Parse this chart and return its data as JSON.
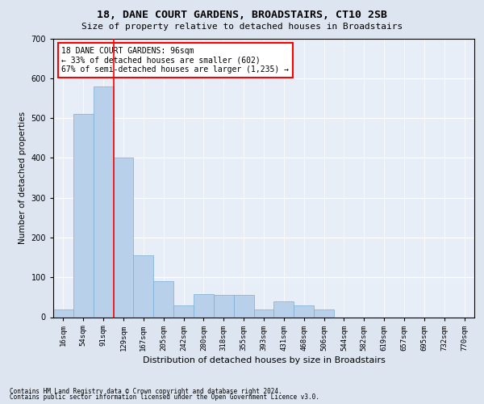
{
  "title": "18, DANE COURT GARDENS, BROADSTAIRS, CT10 2SB",
  "subtitle": "Size of property relative to detached houses in Broadstairs",
  "xlabel": "Distribution of detached houses by size in Broadstairs",
  "ylabel": "Number of detached properties",
  "bin_labels": [
    "16sqm",
    "54sqm",
    "91sqm",
    "129sqm",
    "167sqm",
    "205sqm",
    "242sqm",
    "280sqm",
    "318sqm",
    "355sqm",
    "393sqm",
    "431sqm",
    "468sqm",
    "506sqm",
    "544sqm",
    "582sqm",
    "619sqm",
    "657sqm",
    "695sqm",
    "732sqm",
    "770sqm"
  ],
  "bar_heights": [
    20,
    510,
    580,
    400,
    155,
    90,
    30,
    58,
    55,
    55,
    20,
    40,
    30,
    20,
    0,
    0,
    0,
    0,
    0,
    0,
    0
  ],
  "bar_color": "#b8d0ea",
  "bar_edge_color": "#7aadd4",
  "bar_width": 1.0,
  "ylim": [
    0,
    700
  ],
  "yticks": [
    0,
    100,
    200,
    300,
    400,
    500,
    600,
    700
  ],
  "red_line_x": 2.5,
  "annotation_text": "18 DANE COURT GARDENS: 96sqm\n← 33% of detached houses are smaller (602)\n67% of semi-detached houses are larger (1,235) →",
  "title_fontsize": 9.5,
  "subtitle_fontsize": 8,
  "xlabel_fontsize": 8,
  "ylabel_fontsize": 7.5,
  "tick_fontsize": 6.5,
  "ytick_fontsize": 7,
  "annotation_fontsize": 7,
  "footer_line1": "Contains HM Land Registry data © Crown copyright and database right 2024.",
  "footer_line2": "Contains public sector information licensed under the Open Government Licence v3.0.",
  "bg_color": "#dde5f0",
  "plot_bg_color": "#e8eef8",
  "grid_color": "#ffffff"
}
